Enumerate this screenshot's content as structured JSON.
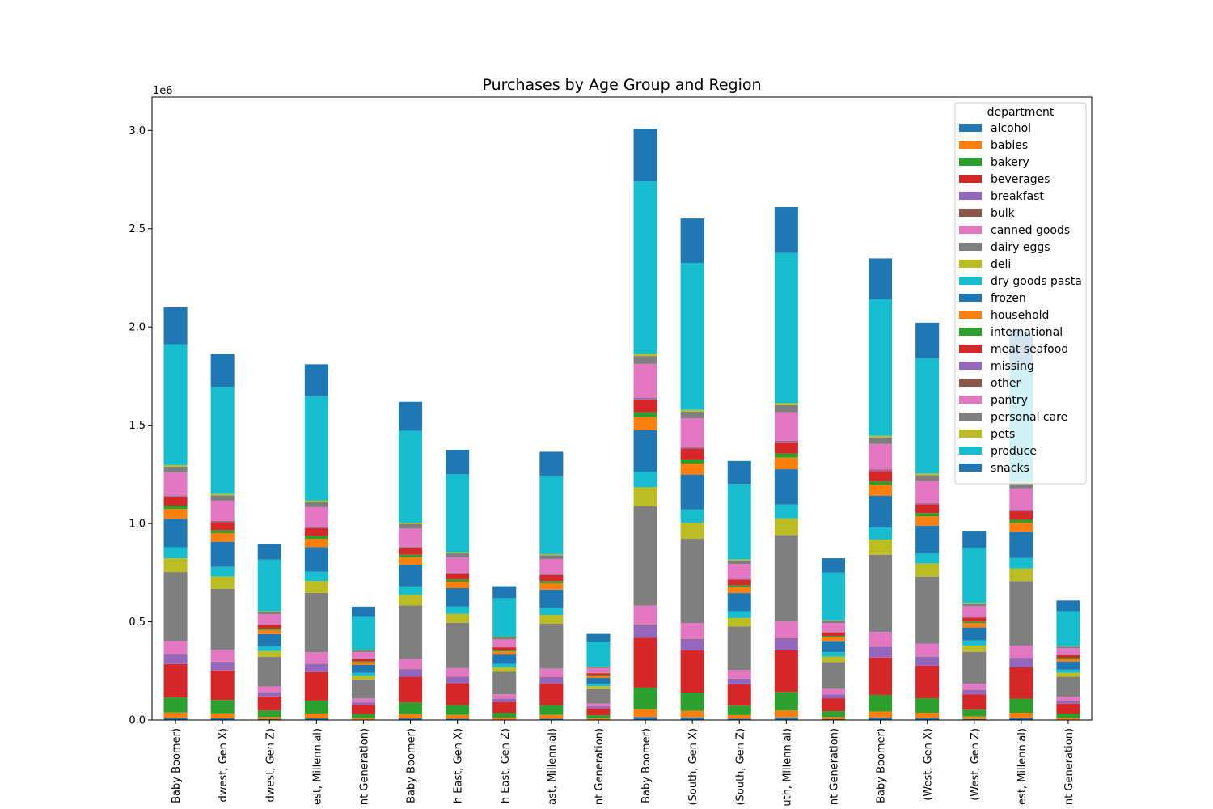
{
  "chart_data": {
    "type": "bar",
    "stacked": true,
    "title": "Purchases by Age Group and Region",
    "xlabel": "",
    "ylabel": "",
    "y_offset_label": "1e6",
    "ylim": [
      0,
      3.17
    ],
    "yticks": [
      "0.0",
      "0.5",
      "1.0",
      "1.5",
      "2.0",
      "2.5",
      "3.0"
    ],
    "grid": false,
    "legend": {
      "title": "department",
      "placement": "top-right"
    },
    "categories": [
      "(Midwest, Baby Boomer)",
      "(Midwest, Gen X)",
      "(Midwest, Gen Z)",
      "(Midwest, Millennial)",
      "(Midwest, Silent Generation)",
      "(North East, Baby Boomer)",
      "(North East, Gen X)",
      "(North East, Gen Z)",
      "(North East, Millennial)",
      "(North East, Silent Generation)",
      "(South, Baby Boomer)",
      "(South, Gen X)",
      "(South, Gen Z)",
      "(South, Millennial)",
      "(South, Silent Generation)",
      "(West, Baby Boomer)",
      "(West, Gen X)",
      "(West, Gen Z)",
      "(West, Millennial)",
      "(West, Silent Generation)"
    ],
    "tick_labels_visible": [
      "Baby Boomer)",
      "dwest, Gen X)",
      "dwest, Gen Z)",
      "est, Millennial)",
      "nt Generation)",
      "Baby Boomer)",
      "h East, Gen X)",
      "h East, Gen Z)",
      "ast, Millennial)",
      "nt Generation)",
      "Baby Boomer)",
      "(South, Gen X)",
      "(South, Gen Z)",
      "uth, Millennial)",
      "nt Generation)",
      "Baby Boomer)",
      "(West, Gen X)",
      "(West, Gen Z)",
      "est, Millennial)",
      "nt Generation)"
    ],
    "series": [
      {
        "name": "alcohol",
        "color": "#1f77b4",
        "values": [
          0.01,
          0.009,
          0.004,
          0.009,
          0.003,
          0.008,
          0.007,
          0.003,
          0.007,
          0.002,
          0.015,
          0.013,
          0.007,
          0.013,
          0.004,
          0.012,
          0.01,
          0.005,
          0.01,
          0.003
        ]
      },
      {
        "name": "babies",
        "color": "#ff7f0e",
        "values": [
          0.028,
          0.025,
          0.011,
          0.024,
          0.007,
          0.022,
          0.019,
          0.009,
          0.019,
          0.006,
          0.04,
          0.034,
          0.018,
          0.035,
          0.011,
          0.031,
          0.027,
          0.013,
          0.027,
          0.008
        ]
      },
      {
        "name": "bakery",
        "color": "#2ca02c",
        "values": [
          0.077,
          0.068,
          0.033,
          0.066,
          0.021,
          0.059,
          0.05,
          0.025,
          0.049,
          0.016,
          0.11,
          0.093,
          0.048,
          0.095,
          0.03,
          0.085,
          0.074,
          0.035,
          0.072,
          0.022
        ]
      },
      {
        "name": "beverages",
        "color": "#d62728",
        "values": [
          0.17,
          0.15,
          0.072,
          0.145,
          0.046,
          0.131,
          0.111,
          0.055,
          0.11,
          0.035,
          0.253,
          0.214,
          0.108,
          0.212,
          0.066,
          0.19,
          0.165,
          0.078,
          0.159,
          0.05
        ]
      },
      {
        "name": "breakfast",
        "color": "#9467bd",
        "values": [
          0.048,
          0.043,
          0.021,
          0.041,
          0.013,
          0.037,
          0.031,
          0.016,
          0.031,
          0.01,
          0.065,
          0.055,
          0.029,
          0.058,
          0.019,
          0.053,
          0.046,
          0.022,
          0.045,
          0.014
        ]
      },
      {
        "name": "bulk",
        "color": "#8c564b",
        "values": [
          0.002,
          0.002,
          0.001,
          0.002,
          0.001,
          0.002,
          0.002,
          0.001,
          0.002,
          0.001,
          0.003,
          0.003,
          0.001,
          0.003,
          0.001,
          0.002,
          0.002,
          0.001,
          0.002,
          0.001
        ]
      },
      {
        "name": "canned goods",
        "color": "#e377c2",
        "values": [
          0.068,
          0.06,
          0.029,
          0.058,
          0.019,
          0.052,
          0.044,
          0.022,
          0.044,
          0.014,
          0.096,
          0.082,
          0.043,
          0.085,
          0.027,
          0.075,
          0.065,
          0.031,
          0.064,
          0.02
        ]
      },
      {
        "name": "dairy eggs",
        "color": "#7f7f7f",
        "values": [
          0.35,
          0.311,
          0.15,
          0.302,
          0.096,
          0.272,
          0.231,
          0.114,
          0.228,
          0.073,
          0.505,
          0.428,
          0.222,
          0.44,
          0.137,
          0.393,
          0.341,
          0.162,
          0.328,
          0.102
        ]
      },
      {
        "name": "deli",
        "color": "#bcbd22",
        "values": [
          0.07,
          0.062,
          0.03,
          0.06,
          0.019,
          0.054,
          0.046,
          0.023,
          0.045,
          0.015,
          0.097,
          0.082,
          0.043,
          0.085,
          0.028,
          0.077,
          0.066,
          0.032,
          0.064,
          0.02
        ]
      },
      {
        "name": "dry goods pasta",
        "color": "#17becf",
        "values": [
          0.056,
          0.049,
          0.024,
          0.048,
          0.015,
          0.043,
          0.036,
          0.018,
          0.036,
          0.012,
          0.08,
          0.067,
          0.035,
          0.07,
          0.022,
          0.062,
          0.054,
          0.026,
          0.053,
          0.016
        ]
      },
      {
        "name": "frozen",
        "color": "#1f77b4",
        "values": [
          0.145,
          0.128,
          0.062,
          0.124,
          0.04,
          0.11,
          0.094,
          0.047,
          0.093,
          0.03,
          0.211,
          0.178,
          0.092,
          0.18,
          0.057,
          0.162,
          0.139,
          0.066,
          0.134,
          0.042
        ]
      },
      {
        "name": "household",
        "color": "#ff7f0e",
        "values": [
          0.05,
          0.044,
          0.021,
          0.043,
          0.014,
          0.038,
          0.033,
          0.016,
          0.032,
          0.01,
          0.066,
          0.056,
          0.029,
          0.059,
          0.019,
          0.054,
          0.047,
          0.022,
          0.045,
          0.014
        ]
      },
      {
        "name": "international",
        "color": "#2ca02c",
        "values": [
          0.017,
          0.015,
          0.007,
          0.015,
          0.005,
          0.013,
          0.011,
          0.006,
          0.011,
          0.004,
          0.025,
          0.021,
          0.011,
          0.021,
          0.007,
          0.019,
          0.017,
          0.008,
          0.016,
          0.005
        ]
      },
      {
        "name": "meat seafood",
        "color": "#d62728",
        "values": [
          0.046,
          0.041,
          0.02,
          0.04,
          0.013,
          0.036,
          0.03,
          0.015,
          0.03,
          0.01,
          0.065,
          0.055,
          0.029,
          0.057,
          0.018,
          0.052,
          0.045,
          0.021,
          0.043,
          0.013
        ]
      },
      {
        "name": "missing",
        "color": "#9467bd",
        "values": [
          0.004,
          0.004,
          0.002,
          0.004,
          0.001,
          0.003,
          0.003,
          0.001,
          0.003,
          0.001,
          0.006,
          0.005,
          0.003,
          0.005,
          0.002,
          0.005,
          0.004,
          0.002,
          0.004,
          0.001
        ]
      },
      {
        "name": "other",
        "color": "#8c564b",
        "values": [
          0.002,
          0.002,
          0.001,
          0.002,
          0.001,
          0.002,
          0.002,
          0.001,
          0.002,
          0.001,
          0.003,
          0.003,
          0.001,
          0.003,
          0.001,
          0.002,
          0.002,
          0.001,
          0.002,
          0.001
        ]
      },
      {
        "name": "pantry",
        "color": "#e377c2",
        "values": [
          0.116,
          0.103,
          0.05,
          0.1,
          0.032,
          0.092,
          0.078,
          0.038,
          0.077,
          0.024,
          0.172,
          0.146,
          0.075,
          0.145,
          0.045,
          0.131,
          0.114,
          0.054,
          0.11,
          0.034
        ]
      },
      {
        "name": "personal care",
        "color": "#7f7f7f",
        "values": [
          0.03,
          0.027,
          0.013,
          0.026,
          0.008,
          0.024,
          0.02,
          0.01,
          0.02,
          0.006,
          0.04,
          0.034,
          0.018,
          0.036,
          0.011,
          0.032,
          0.028,
          0.013,
          0.027,
          0.008
        ]
      },
      {
        "name": "pets",
        "color": "#bcbd22",
        "values": [
          0.008,
          0.007,
          0.003,
          0.007,
          0.002,
          0.006,
          0.005,
          0.003,
          0.005,
          0.002,
          0.011,
          0.009,
          0.005,
          0.01,
          0.003,
          0.009,
          0.008,
          0.004,
          0.007,
          0.002
        ]
      },
      {
        "name": "produce",
        "color": "#17becf",
        "values": [
          0.615,
          0.545,
          0.262,
          0.532,
          0.169,
          0.468,
          0.397,
          0.197,
          0.398,
          0.127,
          0.878,
          0.748,
          0.384,
          0.765,
          0.242,
          0.695,
          0.587,
          0.281,
          0.59,
          0.178
        ]
      },
      {
        "name": "snacks",
        "color": "#1f77b4",
        "values": [
          0.188,
          0.168,
          0.08,
          0.162,
          0.052,
          0.147,
          0.125,
          0.061,
          0.123,
          0.039,
          0.268,
          0.226,
          0.117,
          0.233,
          0.073,
          0.208,
          0.181,
          0.086,
          0.178,
          0.054
        ]
      }
    ]
  }
}
